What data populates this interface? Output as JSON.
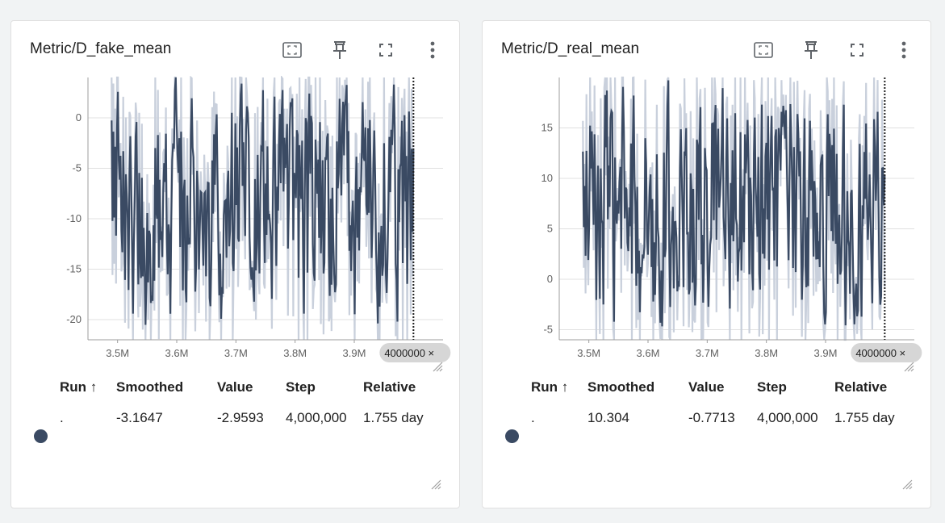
{
  "colors": {
    "smoothed_line": "#3a4a63",
    "raw_line": "#c9d0dc",
    "grid": "#e0e0e0",
    "axis": "#9e9e9e",
    "tooltip_bg": "#d6d6d6"
  },
  "icons": [
    "fit-domain-icon",
    "pin-icon",
    "fullscreen-icon",
    "more-vert-icon",
    "resize-handle-icon"
  ],
  "panels": [
    {
      "title": "Metric/D_fake_mean",
      "table": {
        "headers": [
          "Run ↑",
          "Smoothed",
          "Value",
          "Step",
          "Relative"
        ],
        "row": {
          "run": ".",
          "smoothed": "-3.1647",
          "value": "-2.9593",
          "step": "4,000,000",
          "relative": "1.755 day"
        }
      },
      "hover_step_label": "4000000 ×"
    },
    {
      "title": "Metric/D_real_mean",
      "table": {
        "headers": [
          "Run ↑",
          "Smoothed",
          "Value",
          "Step",
          "Relative"
        ],
        "row": {
          "run": ".",
          "smoothed": "10.304",
          "value": "-0.7713",
          "step": "4,000,000",
          "relative": "1.755 day"
        }
      },
      "hover_step_label": "4000000 ×"
    }
  ],
  "chart_data": [
    {
      "type": "line",
      "title": "Metric/D_fake_mean",
      "xlabel": "",
      "ylabel": "",
      "x_ticks": [
        "3.5M",
        "3.6M",
        "3.7M",
        "3.8M",
        "3.9M"
      ],
      "y_ticks": [
        "0",
        "-5",
        "-10",
        "-15",
        "-20"
      ],
      "xlim": [
        3450000,
        4050000
      ],
      "ylim": [
        -22,
        4
      ],
      "hover_x": 4000000,
      "series": [
        {
          "values_range": [
            -22,
            4
          ],
          "x_range": [
            3490000,
            4000000
          ],
          "last_smoothed": -3.1647,
          "last_value": -2.9593
        }
      ]
    },
    {
      "type": "line",
      "title": "Metric/D_real_mean",
      "xlabel": "",
      "ylabel": "",
      "x_ticks": [
        "3.5M",
        "3.6M",
        "3.7M",
        "3.8M",
        "3.9M"
      ],
      "y_ticks": [
        "15",
        "10",
        "5",
        "0",
        "-5"
      ],
      "xlim": [
        3450000,
        4050000
      ],
      "ylim": [
        -6,
        20
      ],
      "hover_x": 4000000,
      "series": [
        {
          "values_range": [
            -6,
            20
          ],
          "x_range": [
            3490000,
            4000000
          ],
          "last_smoothed": 10.304,
          "last_value": -0.7713
        }
      ]
    }
  ]
}
